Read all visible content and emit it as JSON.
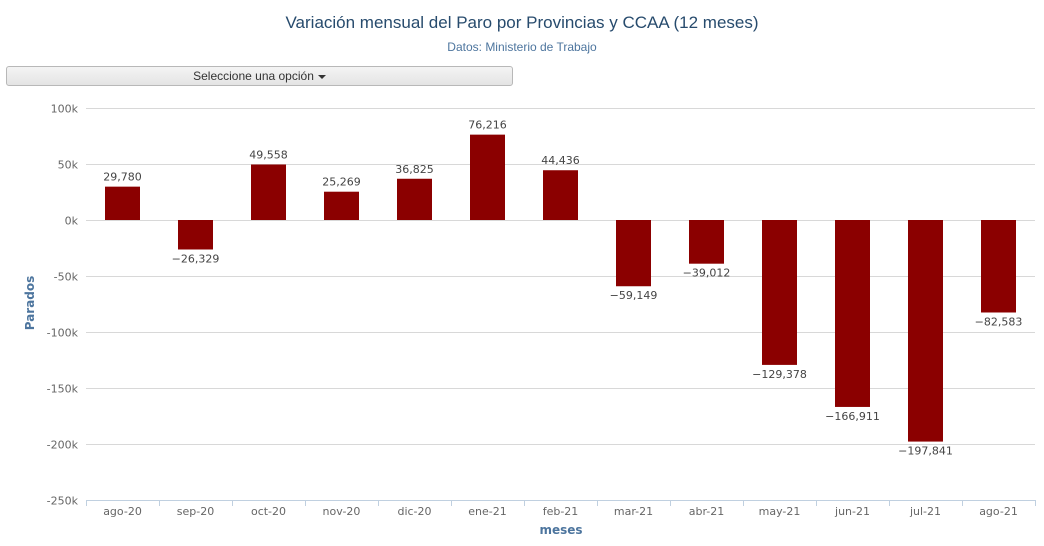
{
  "header": {
    "title": "Variación mensual del Paro por Provincias y CCAA (12 meses)",
    "subtitle": "Datos: Ministerio de Trabajo"
  },
  "controls": {
    "select_label": "Seleccione una opción"
  },
  "colors": {
    "bar": "#8b0000",
    "grid": "#d8d8d8",
    "axis": "#c0d0e0"
  },
  "chart_data": {
    "type": "bar",
    "title": "Variación mensual del Paro por Provincias y CCAA (12 meses)",
    "subtitle": "Datos: Ministerio de Trabajo",
    "xlabel": "meses",
    "ylabel": "Parados",
    "ylim": [
      -250000,
      100000
    ],
    "yticks": [
      100000,
      50000,
      0,
      -50000,
      -100000,
      -150000,
      -200000,
      -250000
    ],
    "ytick_labels": [
      "100k",
      "50k",
      "0k",
      "-50k",
      "-100k",
      "-150k",
      "-200k",
      "-250k"
    ],
    "grid": true,
    "legend": "none",
    "categories": [
      "ago-20",
      "sep-20",
      "oct-20",
      "nov-20",
      "dic-20",
      "ene-21",
      "feb-21",
      "mar-21",
      "abr-21",
      "may-21",
      "jun-21",
      "jul-21",
      "ago-21"
    ],
    "values": [
      29780,
      -26329,
      49558,
      25269,
      36825,
      76216,
      44436,
      -59149,
      -39012,
      -129378,
      -166911,
      -197841,
      -82583
    ],
    "value_labels": [
      "29,780",
      "−26,329",
      "49,558",
      "25,269",
      "36,825",
      "76,216",
      "44,436",
      "−59,149",
      "−39,012",
      "−129,378",
      "−166,911",
      "−197,841",
      "−82,583"
    ]
  }
}
